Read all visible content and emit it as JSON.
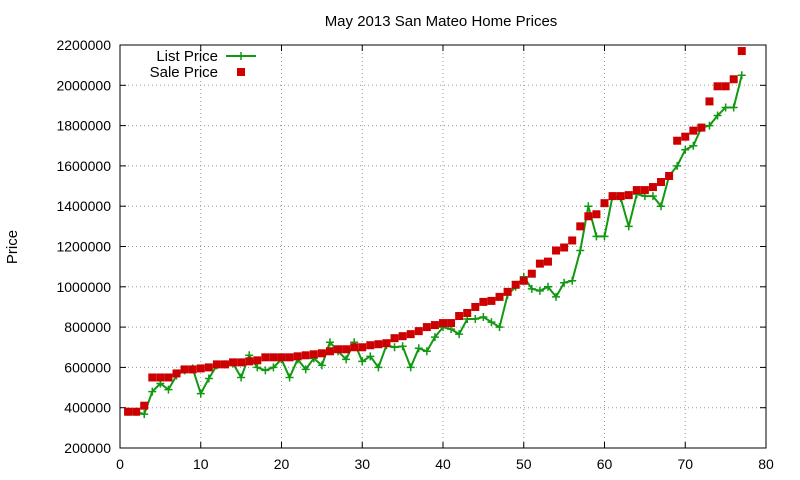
{
  "chart_data": {
    "type": "line",
    "title": "May 2013 San Mateo Home Prices",
    "xlabel": "",
    "ylabel": "Price",
    "xlim": [
      0,
      80
    ],
    "ylim": [
      200000,
      2200000
    ],
    "x_ticks": [
      0,
      10,
      20,
      30,
      40,
      50,
      60,
      70,
      80
    ],
    "y_ticks": [
      200000,
      400000,
      600000,
      800000,
      1000000,
      1200000,
      1400000,
      1600000,
      1800000,
      2000000,
      2200000
    ],
    "grid": true,
    "legend_position": "top-left",
    "series": [
      {
        "name": "List Price",
        "style": "line-with-plus-markers",
        "color": "#119911",
        "x": [
          1,
          2,
          3,
          4,
          5,
          6,
          7,
          8,
          9,
          10,
          11,
          12,
          13,
          14,
          15,
          16,
          17,
          18,
          19,
          20,
          21,
          22,
          23,
          24,
          25,
          26,
          27,
          28,
          29,
          30,
          31,
          32,
          33,
          34,
          35,
          36,
          37,
          38,
          39,
          40,
          41,
          42,
          43,
          44,
          45,
          46,
          47,
          48,
          49,
          50,
          51,
          52,
          53,
          54,
          55,
          56,
          57,
          58,
          59,
          60,
          61,
          62,
          63,
          64,
          65,
          66,
          67,
          68,
          69,
          70,
          71,
          72,
          73,
          74,
          75,
          76,
          77
        ],
        "y": [
          380000,
          380000,
          368000,
          480000,
          520000,
          490000,
          560000,
          585000,
          595000,
          470000,
          545000,
          610000,
          615000,
          620000,
          550000,
          660000,
          600000,
          585000,
          600000,
          640000,
          550000,
          640000,
          590000,
          645000,
          610000,
          725000,
          680000,
          640000,
          725000,
          630000,
          655000,
          600000,
          710000,
          700000,
          705000,
          600000,
          695000,
          680000,
          750000,
          800000,
          790000,
          765000,
          840000,
          840000,
          850000,
          825000,
          800000,
          960000,
          1000000,
          1050000,
          990000,
          980000,
          1000000,
          950000,
          1020000,
          1030000,
          1180000,
          1400000,
          1250000,
          1250000,
          1450000,
          1440000,
          1300000,
          1460000,
          1450000,
          1450000,
          1400000,
          1550000,
          1600000,
          1680000,
          1700000,
          1790000,
          1800000,
          1850000,
          1890000,
          1890000,
          2050000
        ]
      },
      {
        "name": "Sale Price",
        "style": "square-markers",
        "color": "#cc0000",
        "x": [
          1,
          2,
          3,
          4,
          5,
          6,
          7,
          8,
          9,
          10,
          11,
          12,
          13,
          14,
          15,
          16,
          17,
          18,
          19,
          20,
          21,
          22,
          23,
          24,
          25,
          26,
          27,
          28,
          29,
          30,
          31,
          32,
          33,
          34,
          35,
          36,
          37,
          38,
          39,
          40,
          41,
          42,
          43,
          44,
          45,
          46,
          47,
          48,
          49,
          50,
          51,
          52,
          53,
          54,
          55,
          56,
          57,
          58,
          59,
          60,
          61,
          62,
          63,
          64,
          65,
          66,
          67,
          68,
          69,
          70,
          71,
          72,
          73,
          74,
          75,
          76,
          77
        ],
        "y": [
          380000,
          380000,
          410000,
          550000,
          550000,
          550000,
          570000,
          590000,
          590000,
          595000,
          600000,
          615000,
          615000,
          625000,
          625000,
          630000,
          635000,
          650000,
          650000,
          650000,
          650000,
          655000,
          660000,
          665000,
          670000,
          680000,
          690000,
          690000,
          700000,
          700000,
          710000,
          715000,
          720000,
          745000,
          755000,
          765000,
          780000,
          800000,
          810000,
          820000,
          820000,
          855000,
          870000,
          900000,
          925000,
          930000,
          950000,
          975000,
          1010000,
          1030000,
          1065000,
          1115000,
          1125000,
          1180000,
          1195000,
          1230000,
          1300000,
          1350000,
          1360000,
          1415000,
          1450000,
          1450000,
          1455000,
          1480000,
          1480000,
          1495000,
          1520000,
          1550000,
          1725000,
          1745000,
          1775000,
          1790000,
          1920000,
          1995000,
          1995000,
          2030000,
          2170000
        ]
      }
    ]
  }
}
